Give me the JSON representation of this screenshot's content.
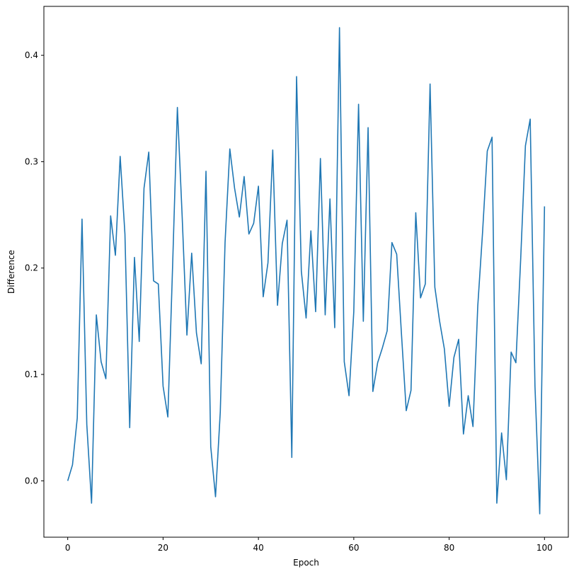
{
  "chart_data": {
    "type": "line",
    "title": "",
    "xlabel": "Epoch",
    "ylabel": "Difference",
    "xlim": [
      -5,
      105
    ],
    "ylim": [
      -0.053,
      0.446
    ],
    "xticks": [
      0,
      20,
      40,
      60,
      80,
      100
    ],
    "yticks": [
      0.0,
      0.1,
      0.2,
      0.3,
      0.4
    ],
    "grid": false,
    "legend": "none",
    "series": [
      {
        "color": "#1f77b4",
        "x": [
          0,
          1,
          2,
          3,
          4,
          5,
          6,
          7,
          8,
          9,
          10,
          11,
          12,
          13,
          14,
          15,
          16,
          17,
          18,
          19,
          20,
          21,
          22,
          23,
          24,
          25,
          26,
          27,
          28,
          29,
          30,
          31,
          32,
          33,
          34,
          35,
          36,
          37,
          38,
          39,
          40,
          41,
          42,
          43,
          44,
          45,
          46,
          47,
          48,
          49,
          50,
          51,
          52,
          53,
          54,
          55,
          56,
          57,
          58,
          59,
          60,
          61,
          62,
          63,
          64,
          65,
          66,
          67,
          68,
          69,
          70,
          71,
          72,
          73,
          74,
          75,
          76,
          77,
          78,
          79,
          80,
          81,
          82,
          83,
          84,
          85,
          86,
          87,
          88,
          89,
          90,
          91,
          92,
          93,
          94,
          95,
          96,
          97,
          98,
          99,
          100
        ],
        "values": [
          0.0,
          0.015,
          0.059,
          0.246,
          0.053,
          -0.021,
          0.156,
          0.112,
          0.096,
          0.249,
          0.212,
          0.305,
          0.232,
          0.05,
          0.21,
          0.131,
          0.275,
          0.309,
          0.188,
          0.185,
          0.089,
          0.06,
          0.202,
          0.351,
          0.249,
          0.137,
          0.214,
          0.139,
          0.11,
          0.291,
          0.032,
          -0.015,
          0.065,
          0.224,
          0.312,
          0.275,
          0.248,
          0.286,
          0.232,
          0.242,
          0.277,
          0.173,
          0.205,
          0.311,
          0.165,
          0.223,
          0.245,
          0.022,
          0.38,
          0.197,
          0.153,
          0.235,
          0.159,
          0.303,
          0.156,
          0.265,
          0.144,
          0.426,
          0.112,
          0.08,
          0.159,
          0.354,
          0.15,
          0.332,
          0.084,
          0.111,
          0.125,
          0.141,
          0.224,
          0.213,
          0.138,
          0.066,
          0.085,
          0.252,
          0.172,
          0.185,
          0.373,
          0.182,
          0.15,
          0.124,
          0.07,
          0.116,
          0.133,
          0.044,
          0.08,
          0.051,
          0.164,
          0.233,
          0.31,
          0.323,
          -0.021,
          0.045,
          0.001,
          0.121,
          0.111,
          0.208,
          0.315,
          0.34,
          0.089,
          -0.031,
          0.258
        ]
      }
    ]
  }
}
